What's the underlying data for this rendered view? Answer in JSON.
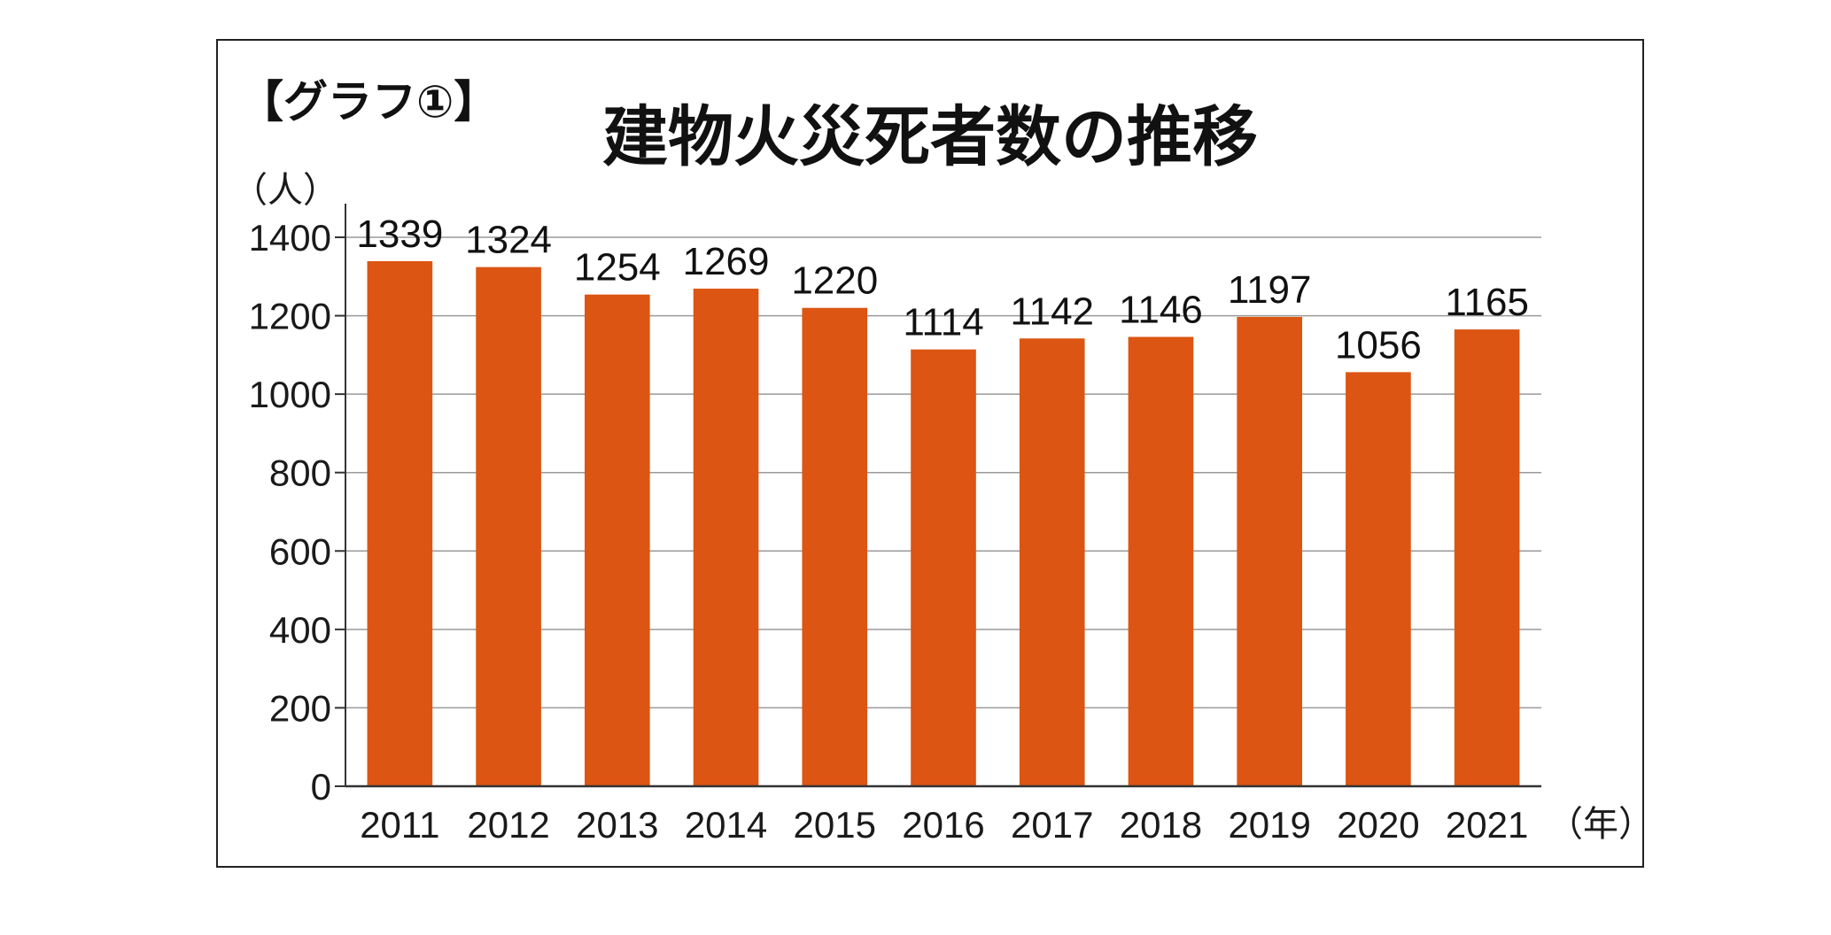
{
  "chart_data": {
    "type": "bar",
    "tag": "【グラフ①】",
    "title": "建物火災死者数の推移",
    "y_unit": "（人）",
    "x_unit": "（年）",
    "categories": [
      "2011",
      "2012",
      "2013",
      "2014",
      "2015",
      "2016",
      "2017",
      "2018",
      "2019",
      "2020",
      "2021"
    ],
    "values": [
      1339,
      1324,
      1254,
      1269,
      1220,
      1114,
      1142,
      1146,
      1197,
      1056,
      1165
    ],
    "ylim": [
      0,
      1400
    ],
    "yticks": [
      0,
      200,
      400,
      600,
      800,
      1000,
      1200,
      1400
    ],
    "grid": true,
    "bar_color": "#dc5512",
    "grid_color": "#9a9a9a",
    "frame_color": "#222222"
  }
}
